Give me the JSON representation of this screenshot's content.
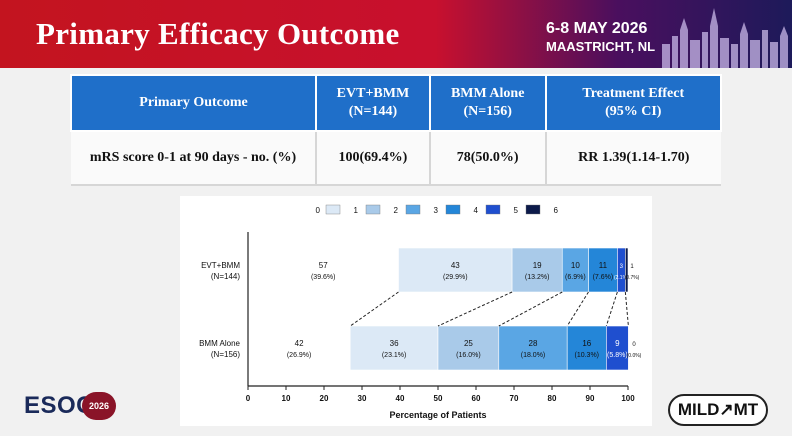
{
  "header": {
    "title": "Primary Efficacy Outcome",
    "conference_date": "6-8 MAY 2026",
    "conference_place": "MAASTRICHT, NL"
  },
  "table": {
    "headers": [
      "Primary Outcome",
      "EVT+BMM\n(N=144)",
      "BMM Alone\n(N=156)",
      "Treatment Effect\n(95% CI)"
    ],
    "row": [
      "mRS score 0-1 at 90 days - no. (%)",
      "100(69.4%)",
      "78(50.0%)",
      "RR 1.39(1.14-1.70)"
    ]
  },
  "colors": {
    "mrs_0": "#ffffff",
    "mrs_1": "#dce9f6",
    "mrs_2": "#a9cae9",
    "mrs_3": "#5aa6e4",
    "mrs_4": "#2486d8",
    "mrs_5": "#1f4fcf",
    "mrs_6": "#0c1a4a",
    "header_blue": "#1f6fc9"
  },
  "chart_data": {
    "type": "bar",
    "orientation": "horizontal",
    "stacked": true,
    "legend": [
      "0",
      "1",
      "2",
      "3",
      "4",
      "5",
      "6"
    ],
    "legend_position": "top",
    "xlabel": "Percentage of Patients",
    "xlim": [
      0,
      100
    ],
    "xticks": [
      "0",
      "10",
      "20",
      "30",
      "40",
      "50",
      "60",
      "70",
      "80",
      "90",
      "100"
    ],
    "grid": false,
    "categories": [
      {
        "label": "EVT+BMM",
        "sublabel": "(N=144)"
      },
      {
        "label": "BMM Alone",
        "sublabel": "(N=156)"
      }
    ],
    "series": [
      {
        "name": "0",
        "values": [
          39.6,
          26.9
        ],
        "counts": [
          "57",
          "42"
        ],
        "pct_labels": [
          "(39.6%)",
          "(26.9%)"
        ]
      },
      {
        "name": "1",
        "values": [
          29.9,
          23.1
        ],
        "counts": [
          "43",
          "36"
        ],
        "pct_labels": [
          "(29.9%)",
          "(23.1%)"
        ]
      },
      {
        "name": "2",
        "values": [
          13.2,
          16.0
        ],
        "counts": [
          "19",
          "25"
        ],
        "pct_labels": [
          "(13.2%)",
          "(16.0%)"
        ]
      },
      {
        "name": "3",
        "values": [
          6.9,
          18.0
        ],
        "counts": [
          "10",
          "28"
        ],
        "pct_labels": [
          "(6.9%)",
          "(18.0%)"
        ]
      },
      {
        "name": "4",
        "values": [
          7.6,
          10.3
        ],
        "counts": [
          "11",
          "16"
        ],
        "pct_labels": [
          "(7.6%)",
          "(10.3%)"
        ]
      },
      {
        "name": "5",
        "values": [
          2.1,
          5.8
        ],
        "counts": [
          "3",
          "9"
        ],
        "pct_labels": [
          "(2.1%)",
          "(5.8%)"
        ]
      },
      {
        "name": "6",
        "values": [
          0.7,
          0.0
        ],
        "counts": [
          "1",
          "0"
        ],
        "pct_labels": [
          "(0.7%)",
          "(0.0%)"
        ]
      }
    ]
  },
  "logos": {
    "esoc_text": "ESOC",
    "esoc_year": "2026",
    "mild_text": "MILD↗MT"
  }
}
